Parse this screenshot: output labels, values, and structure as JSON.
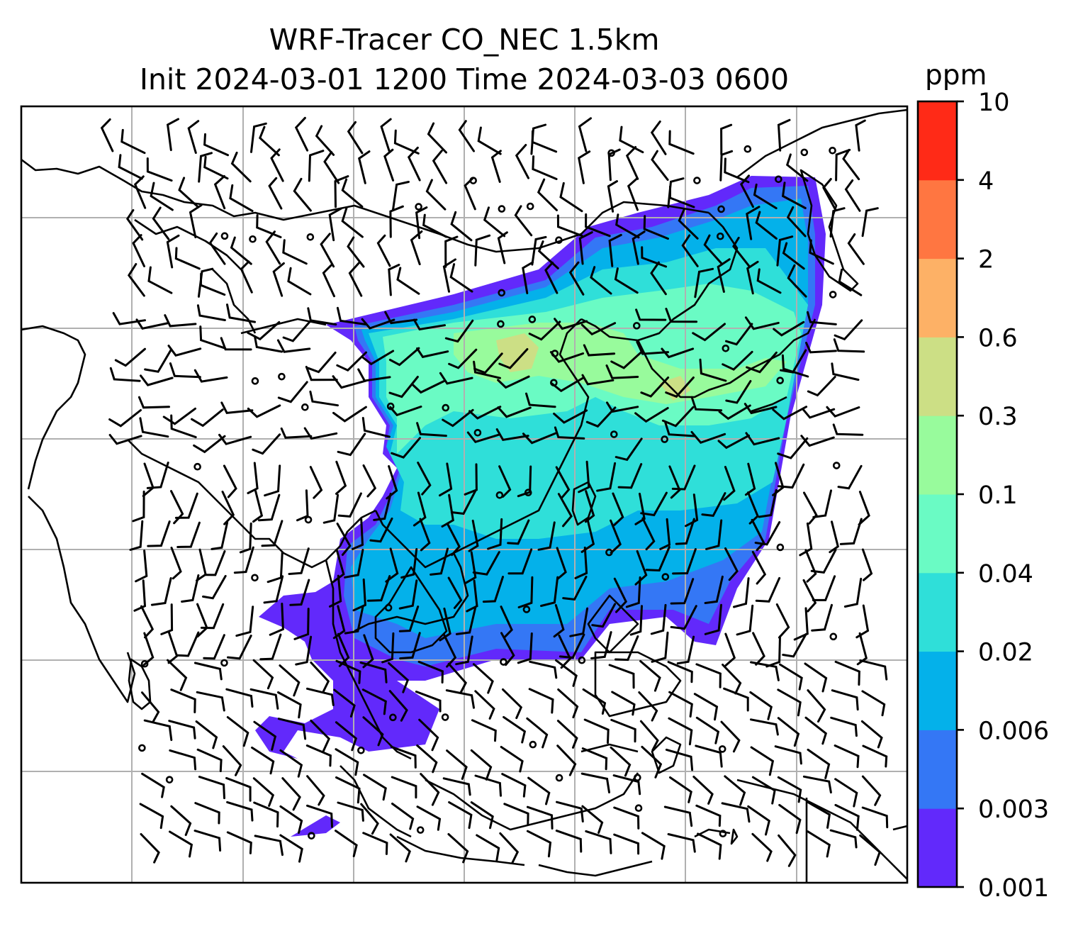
{
  "title_line1": "WRF-Tracer CO_NEC 1.5km",
  "title_line2": "Init 2024-03-01 1200 Time 2024-03-03 0600",
  "colorbar": {
    "unit": "ppm",
    "levels": [
      "0.001",
      "0.003",
      "0.006",
      "0.02",
      "0.04",
      "0.1",
      "0.3",
      "0.6",
      "2",
      "4",
      "10"
    ],
    "colors": [
      "#6229fb",
      "#3477f5",
      "#04b1ea",
      "#2fdfd9",
      "#6afbc4",
      "#98fb9c",
      "#ccdf85",
      "#fdb166",
      "#ff7641",
      "#ff2a17"
    ]
  },
  "map": {
    "field": "CO_NEC tracer at 1.5km",
    "overlays": [
      "coastlines",
      "country-borders",
      "lat-lon-gridlines",
      "wind-barbs"
    ]
  }
}
